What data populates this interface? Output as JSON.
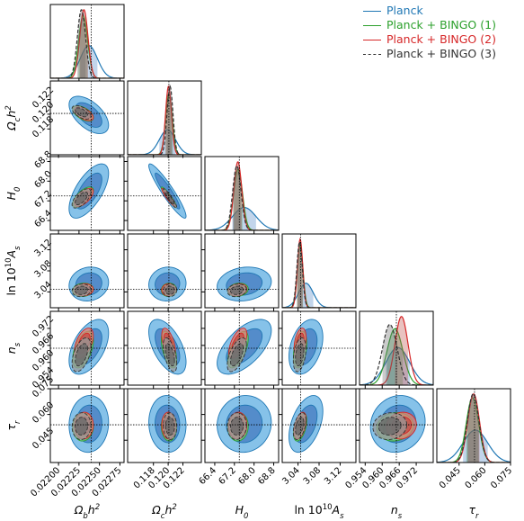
{
  "chart_data": {
    "type": "corner",
    "parameters": [
      {
        "label": "Ω_b h²",
        "tex": {
          "base": "Ω",
          "sub": "b",
          "rest": "h",
          "sup": "2"
        },
        "range": [
          0.0219,
          0.0228
        ],
        "fiducial": 0.0224,
        "ticks": [
          0.022,
          0.02225,
          0.0225,
          0.02275
        ],
        "tick_labels": [
          "0.02200",
          "0.02225",
          "0.02250",
          "0.02275"
        ]
      },
      {
        "label": "Ω_c h²",
        "tex": {
          "base": "Ω",
          "sub": "c",
          "rest": "h",
          "sup": "2"
        },
        "range": [
          0.1145,
          0.1245
        ],
        "fiducial": 0.1201,
        "ticks": [
          0.118,
          0.12,
          0.122
        ],
        "tick_labels": [
          "0.118",
          "0.120",
          "0.122"
        ]
      },
      {
        "label": "H_0",
        "tex": {
          "base": "H",
          "sub": "0",
          "rest": "",
          "sup": ""
        },
        "range": [
          66.0,
          69.0
        ],
        "fiducial": 67.4,
        "ticks": [
          66.4,
          67.2,
          68.0,
          68.8
        ],
        "tick_labels": [
          "66.4",
          "67.2",
          "68.0",
          "68.8"
        ]
      },
      {
        "label": "ln 10¹⁰A_s",
        "tex": {
          "base": "ln 10",
          "sub": "s",
          "rest": "",
          "sup": "10",
          "pre": "A"
        },
        "range": [
          3.01,
          3.15
        ],
        "fiducial": 3.045,
        "ticks": [
          3.04,
          3.08,
          3.12
        ],
        "tick_labels": [
          "3.04",
          "3.08",
          "3.12"
        ]
      },
      {
        "label": "n_s",
        "tex": {
          "base": "n",
          "sub": "s",
          "rest": "",
          "sup": ""
        },
        "range": [
          0.952,
          0.978
        ],
        "fiducial": 0.965,
        "ticks": [
          0.954,
          0.96,
          0.966,
          0.972
        ],
        "tick_labels": [
          "0.954",
          "0.960",
          "0.966",
          "0.972"
        ]
      },
      {
        "label": "τ_r",
        "tex": {
          "base": "τ",
          "sub": "r",
          "rest": "",
          "sup": ""
        },
        "range": [
          0.032,
          0.075
        ],
        "fiducial": 0.054,
        "ticks": [
          0.045,
          0.06,
          0.075
        ],
        "tick_labels": [
          "0.045",
          "0.060",
          "0.075"
        ]
      }
    ],
    "series": [
      {
        "name": "Planck",
        "color": "#1f77b4",
        "fill_outer": "#7fbfe8",
        "fill_inner": "#4f86c6",
        "style": "solid",
        "mean": [
          0.02237,
          0.1199,
          67.6,
          3.055,
          0.9655,
          0.0545
        ],
        "sigma": [
          0.000105,
          0.0011,
          0.48,
          0.014,
          0.0042,
          0.0072
        ]
      },
      {
        "name": "Planck + BINGO (1)",
        "color": "#2ca02c",
        "fill_outer": "#7fcf7f",
        "fill_inner": "#3f9f4f",
        "style": "solid",
        "mean": [
          0.0223,
          0.1201,
          67.35,
          3.044,
          0.9645,
          0.0528
        ],
        "sigma": [
          5.5e-05,
          0.00045,
          0.18,
          0.0055,
          0.0028,
          0.0036
        ]
      },
      {
        "name": "Planck + BINGO (2)",
        "color": "#d62728",
        "fill_outer": "#e08070",
        "fill_inner": "#c0504a",
        "style": "solid",
        "mean": [
          0.02231,
          0.12005,
          67.34,
          3.044,
          0.9668,
          0.0535
        ],
        "sigma": [
          5e-05,
          0.0004,
          0.16,
          0.005,
          0.0023,
          0.0034
        ]
      },
      {
        "name": "Planck + BINGO (3)",
        "color": "#333333",
        "fill_outer": "#9a9a9a",
        "fill_inner": "#6a6a6a",
        "style": "dashed",
        "mean": [
          0.02228,
          0.12025,
          67.3,
          3.043,
          0.9627,
          0.0532
        ],
        "sigma": [
          5e-05,
          0.0004,
          0.17,
          0.0052,
          0.0026,
          0.0034
        ]
      }
    ],
    "correlations": [
      [
        1,
        -0.55,
        0.65,
        0.1,
        0.5,
        0.05
      ],
      [
        -0.55,
        1,
        -0.93,
        0.05,
        -0.55,
        -0.05
      ],
      [
        0.65,
        -0.93,
        1,
        0.15,
        0.6,
        0.05
      ],
      [
        0.1,
        0.05,
        0.15,
        1,
        0.35,
        0.45
      ],
      [
        0.5,
        -0.55,
        0.6,
        0.35,
        1,
        0.1
      ],
      [
        0.05,
        -0.05,
        0.05,
        0.45,
        0.1,
        1
      ]
    ],
    "legend_position": "top-right",
    "grid": false
  }
}
